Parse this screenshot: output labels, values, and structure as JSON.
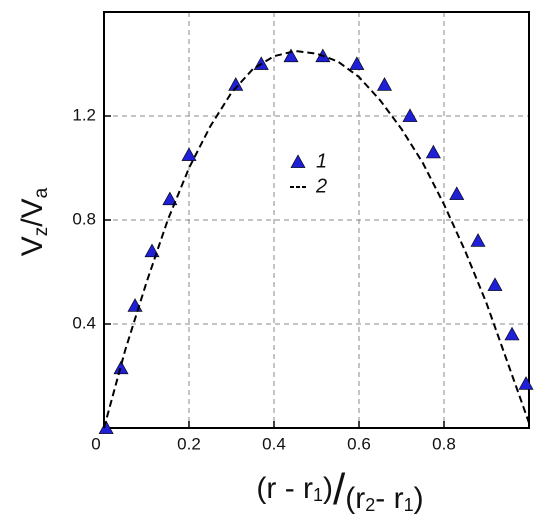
{
  "chart_data": {
    "type": "scatter",
    "xlabel": [
      "(r - r",
      "1",
      ")",
      "/",
      "(r",
      "2",
      "- r",
      "1",
      ")"
    ],
    "ylabel": [
      "V",
      "z",
      "/",
      "V",
      "a"
    ],
    "xlim": [
      0,
      1
    ],
    "ylim": [
      0,
      1.6
    ],
    "xticks": [
      0,
      0.2,
      0.4,
      0.6,
      0.8
    ],
    "yticks": [
      0.4,
      0.8,
      1.2
    ],
    "grid": true,
    "series": [
      {
        "name": "1",
        "type": "scatter",
        "color": "#1f1fd6",
        "x": [
          0.005,
          0.04,
          0.073,
          0.113,
          0.155,
          0.2,
          0.31,
          0.37,
          0.44,
          0.515,
          0.595,
          0.66,
          0.72,
          0.775,
          0.83,
          0.88,
          0.92,
          0.96,
          0.993
        ],
        "values": [
          0.0,
          0.23,
          0.47,
          0.68,
          0.88,
          1.05,
          1.32,
          1.4,
          1.43,
          1.43,
          1.4,
          1.32,
          1.2,
          1.06,
          0.9,
          0.72,
          0.55,
          0.36,
          0.17
        ]
      },
      {
        "name": "2",
        "type": "line",
        "color": "#000000",
        "x": [
          0,
          0.05,
          0.1,
          0.15,
          0.2,
          0.25,
          0.3,
          0.35,
          0.4,
          0.45,
          0.5,
          0.55,
          0.6,
          0.65,
          0.7,
          0.75,
          0.8,
          0.85,
          0.9,
          0.95,
          1.0
        ],
        "values": [
          0,
          0.3,
          0.56,
          0.8,
          1.0,
          1.16,
          1.29,
          1.38,
          1.43,
          1.45,
          1.44,
          1.41,
          1.35,
          1.26,
          1.15,
          1.02,
          0.86,
          0.68,
          0.48,
          0.25,
          0.02
        ]
      }
    ]
  }
}
